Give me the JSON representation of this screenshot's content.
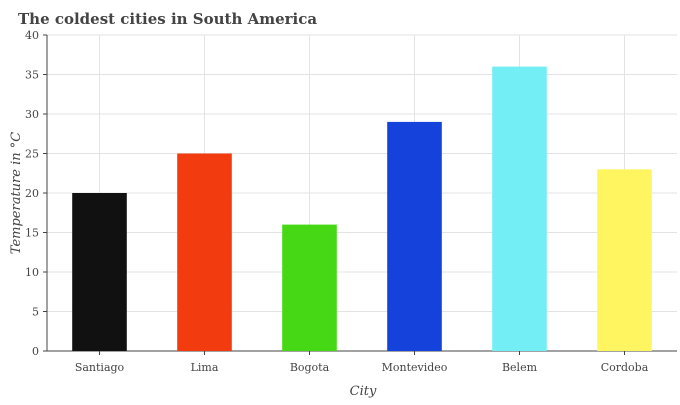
{
  "chart_data": {
    "type": "bar",
    "title": "The coldest cities in South America",
    "xlabel": "City",
    "ylabel": "Temperature in °C",
    "categories": [
      "Santiago",
      "Lima",
      "Bogota",
      "Montevideo",
      "Belem",
      "Cordoba"
    ],
    "values": [
      20,
      25,
      16,
      29,
      36,
      23
    ],
    "colors": [
      "#111111",
      "#f23b0e",
      "#47d815",
      "#1542db",
      "#72eef4",
      "#fef561"
    ],
    "ylim": [
      0,
      40
    ],
    "yticks": [
      0,
      5,
      10,
      15,
      20,
      25,
      30,
      35,
      40
    ],
    "grid": true,
    "legend": "none"
  }
}
